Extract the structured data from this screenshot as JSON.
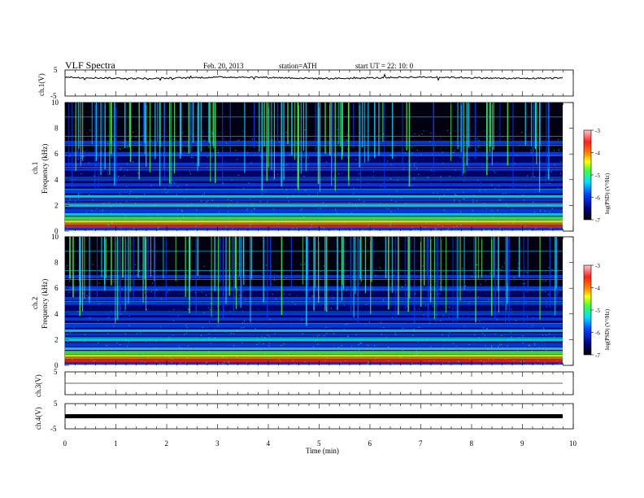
{
  "header": {
    "title": "VLF  Spectra",
    "date": "Feb. 20, 2013",
    "station": "station=ATH",
    "start": "start  UT  =   22: 10: 0"
  },
  "colors": {
    "background_low": "#000000",
    "dark_blue": "#00007a",
    "blue": "#0040ff",
    "cyan": "#00e0ff",
    "green": "#40ff40",
    "yellow": "#ffff00",
    "orange": "#ff8000",
    "red": "#ff2020",
    "pink": "#ffc0c0",
    "trace": "#000000"
  },
  "chart_data": [
    {
      "type": "line",
      "panel": "ch1-waveform",
      "ylabel": "ch.1(V)",
      "ylim": [
        -5,
        5
      ],
      "y_ticks": [
        "5",
        "-5"
      ],
      "x_range_min": [
        0,
        9.8
      ],
      "series": [
        {
          "values_approx": 2
        }
      ]
    },
    {
      "type": "heatmap",
      "panel": "ch1-spectrogram",
      "ylabel_channel": "ch.1",
      "ylabel": "Frequency  (kHz)",
      "ylim": [
        0,
        10
      ],
      "y_ticks": [
        "0",
        "2",
        "4",
        "6",
        "8",
        "10"
      ],
      "x_range_min": [
        0,
        9.8
      ],
      "colorbar": {
        "label": "log(PSD) (V²/Hz)",
        "range": [
          -7,
          -3
        ],
        "ticks": [
          "-3",
          "-4",
          "-5",
          "-6",
          "-7"
        ]
      }
    },
    {
      "type": "heatmap",
      "panel": "ch2-spectrogram",
      "ylabel_channel": "ch.2",
      "ylabel": "Frequency  (kHz)",
      "ylim": [
        0,
        10
      ],
      "y_ticks": [
        "0",
        "2",
        "4",
        "6",
        "8",
        "10"
      ],
      "x_range_min": [
        0,
        9.8
      ],
      "colorbar": {
        "label": "log(PSD) (V²/Hz)",
        "range": [
          -7,
          -3
        ],
        "ticks": [
          "-3",
          "-4",
          "-5",
          "-6",
          "-7"
        ]
      }
    },
    {
      "type": "line",
      "panel": "ch3-waveform",
      "ylabel": "ch.3(V)",
      "ylim": [
        -5,
        5
      ],
      "y_ticks": [
        "5",
        "-5"
      ],
      "x_range_min": [
        0,
        9.8
      ],
      "series": [
        {
          "values_approx": 0
        }
      ]
    },
    {
      "type": "line",
      "panel": "ch4-waveform",
      "ylabel": "ch.4(V)",
      "ylim": [
        -5,
        5
      ],
      "y_ticks": [
        "5",
        "-5"
      ],
      "x_range_min": [
        0,
        9.8
      ],
      "series": [
        {
          "values_approx": 0
        }
      ]
    }
  ],
  "xaxis": {
    "label": "Time  (min)",
    "range": [
      0,
      10
    ],
    "ticks": [
      "0",
      "1",
      "2",
      "3",
      "4",
      "5",
      "6",
      "7",
      "8",
      "9",
      "10"
    ]
  }
}
